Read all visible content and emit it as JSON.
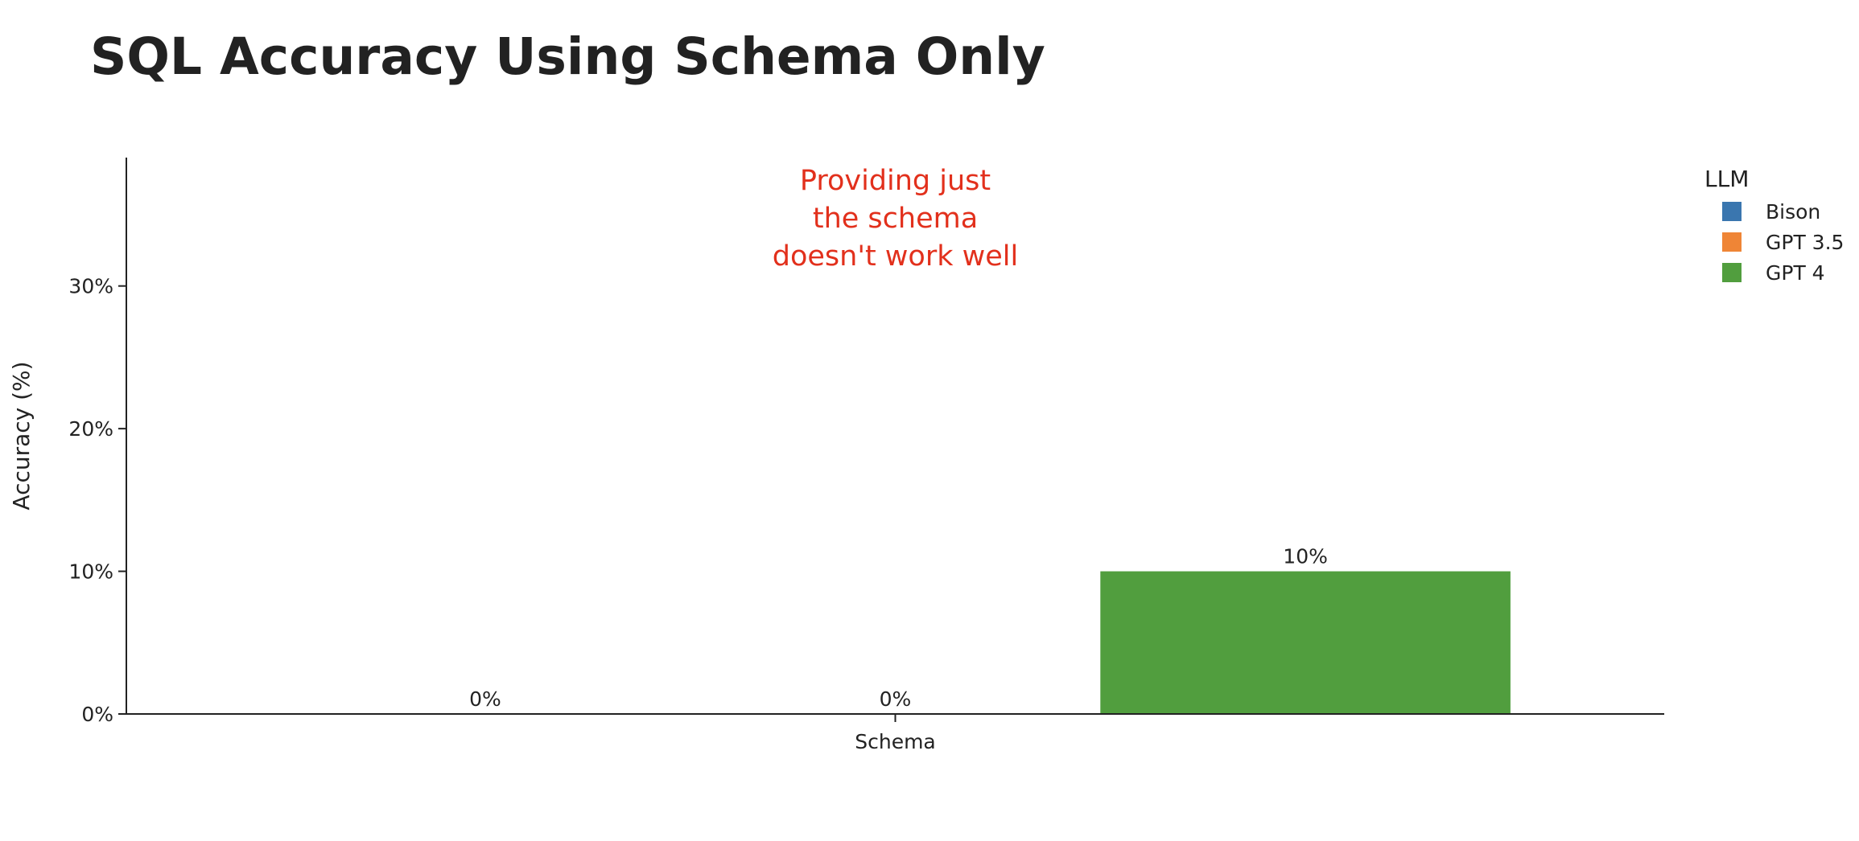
{
  "title": "SQL Accuracy Using Schema Only",
  "legend": {
    "title": "LLM",
    "items": [
      {
        "label": "Bison",
        "color": "#3a76af"
      },
      {
        "label": "GPT 3.5",
        "color": "#ef8536"
      },
      {
        "label": "GPT 4",
        "color": "#519e3e"
      }
    ]
  },
  "chart_data": {
    "type": "bar",
    "title": "SQL Accuracy Using Schema Only",
    "categories": [
      "Schema"
    ],
    "series": [
      {
        "name": "Bison",
        "values": [
          0
        ],
        "color": "#3a76af"
      },
      {
        "name": "GPT 3.5",
        "values": [
          0
        ],
        "color": "#ef8536"
      },
      {
        "name": "GPT 4",
        "values": [
          10
        ],
        "color": "#519e3e"
      }
    ],
    "data_labels": [
      "0%",
      "0%",
      "10%"
    ],
    "xlabel": "",
    "ylabel": "Accuracy (%)",
    "ylim": [
      0,
      39
    ],
    "yticks": [
      0,
      10,
      20,
      30
    ],
    "ytick_labels": [
      "0%",
      "10%",
      "20%",
      "30%"
    ],
    "grid": false,
    "legend_position": "top-right",
    "annotation": {
      "lines": [
        "Providing just",
        "the schema",
        "doesn't work well"
      ],
      "color": "#e2301c"
    }
  }
}
